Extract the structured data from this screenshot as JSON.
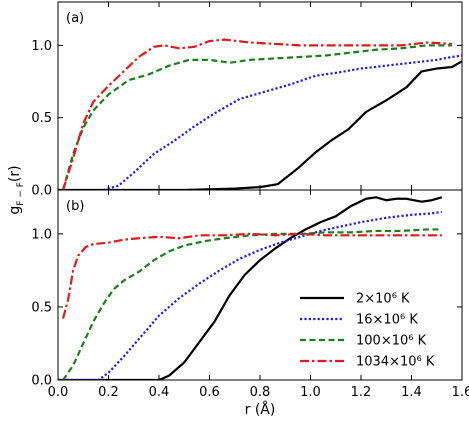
{
  "chart_data": [
    {
      "panel_label": "(a)",
      "type": "line",
      "ylabel": "g",
      "ylabel_subscript": "F − F",
      "ylabel_suffix": "(r)",
      "xlim": [
        0.0,
        1.6
      ],
      "ylim": [
        0.0,
        1.3
      ],
      "xticks": [
        0.0,
        0.2,
        0.4,
        0.6,
        0.8,
        1.0,
        1.2,
        1.4,
        1.6
      ],
      "yticks": [
        0.0,
        0.5,
        1.0
      ],
      "ytick_labels": [
        "0.0",
        "0.5",
        "1.0"
      ],
      "grid": false,
      "series": [
        {
          "name": "2×10⁶ K",
          "color": "#000000",
          "dash": "solid",
          "x": [
            0.0,
            0.5,
            0.7,
            0.8,
            0.87,
            0.95,
            1.02,
            1.08,
            1.15,
            1.22,
            1.3,
            1.38,
            1.44,
            1.5,
            1.56,
            1.6
          ],
          "y": [
            0.0,
            0.0,
            0.01,
            0.02,
            0.04,
            0.15,
            0.26,
            0.34,
            0.42,
            0.54,
            0.62,
            0.71,
            0.82,
            0.84,
            0.85,
            0.89
          ]
        },
        {
          "name": "16×10⁶ K",
          "color": "#1f1fd6",
          "dash": "dotted",
          "x": [
            0.18,
            0.24,
            0.3,
            0.38,
            0.46,
            0.54,
            0.62,
            0.72,
            0.82,
            0.92,
            1.02,
            1.1,
            1.2,
            1.3,
            1.4,
            1.5,
            1.56,
            1.6
          ],
          "y": [
            0.0,
            0.03,
            0.12,
            0.25,
            0.34,
            0.44,
            0.53,
            0.63,
            0.68,
            0.73,
            0.79,
            0.81,
            0.84,
            0.86,
            0.88,
            0.9,
            0.92,
            0.93
          ]
        },
        {
          "name": "100×10⁶ K",
          "color": "#1a7f1a",
          "dash": "dashed",
          "x": [
            0.02,
            0.06,
            0.1,
            0.14,
            0.2,
            0.28,
            0.36,
            0.44,
            0.52,
            0.6,
            0.68,
            0.76,
            0.86,
            0.96,
            1.06,
            1.16,
            1.26,
            1.36,
            1.46,
            1.56
          ],
          "y": [
            0.0,
            0.25,
            0.43,
            0.55,
            0.66,
            0.76,
            0.8,
            0.86,
            0.9,
            0.9,
            0.88,
            0.9,
            0.91,
            0.92,
            0.93,
            0.95,
            0.97,
            0.98,
            1.0,
            1.0
          ]
        },
        {
          "name": "1034×10⁶ K",
          "color": "#e01a1a",
          "dash": "dashdot",
          "x": [
            0.02,
            0.06,
            0.1,
            0.14,
            0.2,
            0.26,
            0.32,
            0.38,
            0.42,
            0.48,
            0.54,
            0.6,
            0.66,
            0.76,
            0.86,
            0.96,
            1.06,
            1.16,
            1.26,
            1.36,
            1.46,
            1.56
          ],
          "y": [
            0.0,
            0.22,
            0.46,
            0.61,
            0.72,
            0.82,
            0.92,
            0.99,
            1.0,
            0.98,
            0.99,
            1.03,
            1.04,
            1.02,
            1.01,
            1.0,
            1.0,
            1.0,
            1.0,
            1.0,
            1.02,
            1.01
          ]
        }
      ]
    },
    {
      "panel_label": "(b)",
      "type": "line",
      "xlabel": "r (Å)",
      "xlim": [
        0.0,
        1.6
      ],
      "ylim": [
        0.0,
        1.3
      ],
      "xticks": [
        0.0,
        0.2,
        0.4,
        0.6,
        0.8,
        1.0,
        1.2,
        1.4,
        1.6
      ],
      "xtick_labels": [
        "0.0",
        "0.2",
        "0.4",
        "0.6",
        "0.8",
        "1.0",
        "1.2",
        "1.4",
        "1.6"
      ],
      "yticks": [
        0.0,
        0.5,
        1.0
      ],
      "ytick_labels": [
        "0.0",
        "0.5",
        "1.0"
      ],
      "grid": false,
      "legend_position": "bottom-right",
      "series": [
        {
          "name": "2×10⁶ K",
          "color": "#000000",
          "dash": "solid",
          "x": [
            0.0,
            0.4,
            0.44,
            0.5,
            0.56,
            0.62,
            0.68,
            0.74,
            0.8,
            0.86,
            0.92,
            0.98,
            1.04,
            1.1,
            1.16,
            1.22,
            1.26,
            1.3,
            1.34,
            1.38,
            1.44,
            1.48,
            1.52
          ],
          "y": [
            0.0,
            0.0,
            0.03,
            0.12,
            0.26,
            0.4,
            0.58,
            0.72,
            0.82,
            0.9,
            0.97,
            1.03,
            1.08,
            1.12,
            1.19,
            1.24,
            1.25,
            1.23,
            1.24,
            1.24,
            1.22,
            1.23,
            1.25
          ]
        },
        {
          "name": "16×10⁶ K",
          "color": "#1f1fd6",
          "dash": "dotted",
          "x": [
            0.0,
            0.16,
            0.2,
            0.26,
            0.32,
            0.4,
            0.48,
            0.56,
            0.64,
            0.72,
            0.8,
            0.88,
            0.96,
            1.04,
            1.12,
            1.2,
            1.3,
            1.4,
            1.48,
            1.52
          ],
          "y": [
            0.0,
            0.0,
            0.05,
            0.16,
            0.28,
            0.44,
            0.56,
            0.66,
            0.75,
            0.83,
            0.89,
            0.94,
            0.98,
            1.02,
            1.05,
            1.08,
            1.11,
            1.13,
            1.14,
            1.15
          ]
        },
        {
          "name": "100×10⁶ K",
          "color": "#1a7f1a",
          "dash": "dashed",
          "x": [
            0.02,
            0.06,
            0.1,
            0.14,
            0.18,
            0.22,
            0.26,
            0.32,
            0.38,
            0.44,
            0.5,
            0.58,
            0.66,
            0.76,
            0.86,
            0.96,
            1.06,
            1.16,
            1.26,
            1.36,
            1.46,
            1.52
          ],
          "y": [
            0.0,
            0.1,
            0.25,
            0.4,
            0.52,
            0.62,
            0.68,
            0.74,
            0.82,
            0.88,
            0.92,
            0.95,
            0.97,
            0.99,
            1.0,
            1.0,
            1.01,
            1.01,
            1.02,
            1.02,
            1.03,
            1.03
          ]
        },
        {
          "name": "1034×10⁶ K",
          "color": "#e01a1a",
          "dash": "dashdot",
          "x": [
            0.02,
            0.04,
            0.06,
            0.08,
            0.11,
            0.14,
            0.2,
            0.26,
            0.32,
            0.4,
            0.48,
            0.56,
            0.66,
            0.76,
            0.86,
            0.96,
            1.06,
            1.16,
            1.26,
            1.36,
            1.46,
            1.52
          ],
          "y": [
            0.42,
            0.55,
            0.75,
            0.85,
            0.91,
            0.93,
            0.94,
            0.96,
            0.97,
            0.98,
            0.97,
            0.99,
            0.99,
            1.0,
            0.99,
            1.0,
            0.99,
            0.99,
            0.99,
            0.99,
            0.99,
            0.99
          ]
        }
      ]
    }
  ]
}
